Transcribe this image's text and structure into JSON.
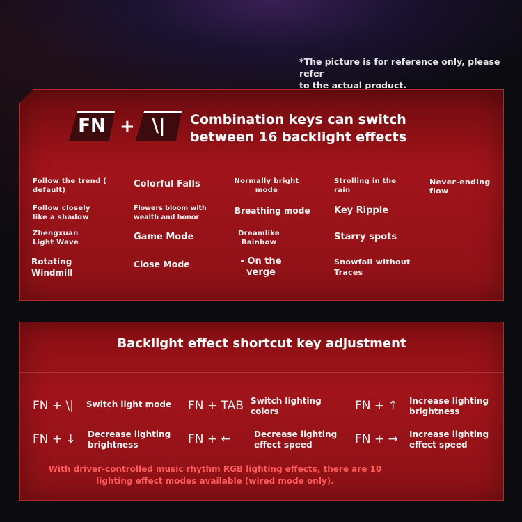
{
  "note": {
    "line1": "*The picture is for reference only, please refer",
    "line2": "to the actual product."
  },
  "combo": {
    "key1": "FN",
    "plus": "+",
    "key2": "\\|",
    "title_line1": "Combination keys can switch",
    "title_line2": "between 16 backlight effects",
    "effects": [
      "Follow the trend ( default)",
      "Colorful Falls",
      "Normally bright mode",
      "Strolling in the rain",
      "Never-ending flow",
      "Follow closely like a shadow",
      "Flowers bloom with wealth and honor",
      "Breathing mode",
      "Key Ripple",
      "Zhengxuan Light Wave",
      "Game Mode",
      "Dreamlike Rainbow",
      "Starry spots",
      "Rotating Windmill",
      "Close Mode",
      "- On the verge",
      "Snowfall without Traces"
    ]
  },
  "shortcuts": {
    "title": "Backlight effect shortcut key adjustment",
    "items": [
      {
        "keys": "FN + \\|",
        "label": "Switch light mode"
      },
      {
        "keys": "FN + TAB",
        "label": "Switch lighting colors"
      },
      {
        "keys": "FN + ↑",
        "label": "Increase lighting brightness"
      },
      {
        "keys": "FN + ↓",
        "label": "Decrease lighting brightness"
      },
      {
        "keys": "FN + ←",
        "label": "Decrease lighting effect speed"
      },
      {
        "keys": "FN + →",
        "label": "Increase lighting effect speed"
      }
    ],
    "footer_line1": "With driver-controlled music rhythm RGB lighting effects, there are 10",
    "footer_line2": "lighting effect modes available (wired mode only)."
  },
  "colors": {
    "panel": "#a0141a",
    "background": "#0c0b10",
    "footer_text": "#ff5a5a"
  }
}
